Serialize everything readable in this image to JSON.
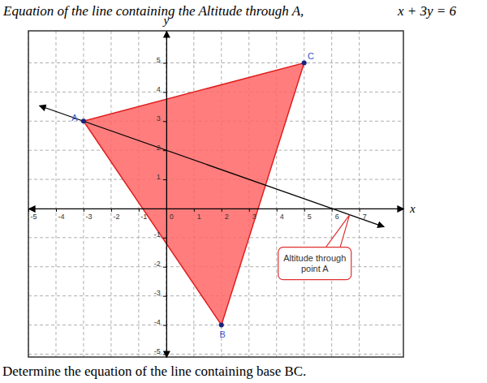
{
  "header": {
    "text": "Equation of the line containing the Altitude through A,",
    "equation": "x + 3y = 6"
  },
  "question": "Determine the equation of the line containing base BC.",
  "chart_data": {
    "type": "line",
    "x_label": "x",
    "y_label": "y",
    "xlim": [
      -5,
      8.6
    ],
    "ylim": [
      -5.1,
      6.1
    ],
    "xticks": [
      -5,
      -4,
      -3,
      -2,
      -1,
      0,
      1,
      2,
      3,
      4,
      5,
      6,
      7
    ],
    "yticks": [
      -5,
      -4,
      -3,
      -2,
      -1,
      1,
      2,
      3,
      4,
      5
    ],
    "grid": true,
    "series": [
      {
        "type": "polygon",
        "labels": [
          "A",
          "B",
          "C"
        ],
        "x": [
          -3,
          2,
          5
        ],
        "values": [
          3,
          -4,
          5
        ],
        "color": "#ff6666",
        "marker": "circle"
      },
      {
        "type": "line",
        "x": [
          -4.6,
          7.9
        ],
        "values": [
          3.53,
          -0.63
        ],
        "color": "#000000",
        "marker": "arrow",
        "annotation": "Altitude through point A"
      }
    ]
  }
}
